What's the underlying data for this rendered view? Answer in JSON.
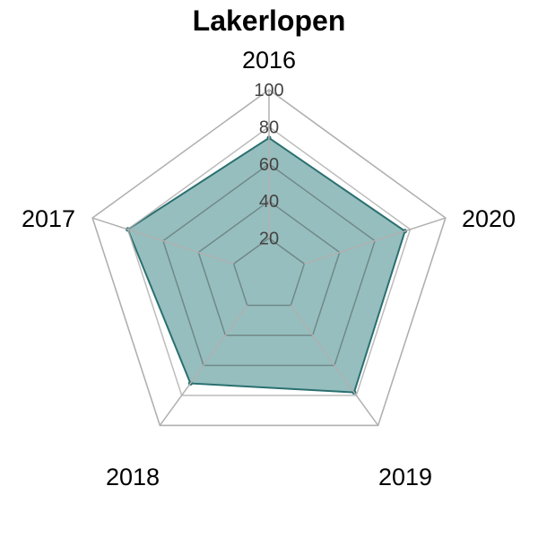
{
  "chart_data": {
    "type": "radar",
    "title": "Lakerlopen",
    "categories": [
      "2016",
      "2017",
      "2018",
      "2019",
      "2020"
    ],
    "series": [
      {
        "values": [
          74,
          80,
          72,
          78,
          77
        ]
      }
    ],
    "rlim": [
      0,
      100
    ],
    "ticks": [
      20,
      40,
      60,
      80,
      100
    ],
    "tick_labels": [
      "20",
      "40",
      "60",
      "80",
      "100"
    ],
    "grid": true,
    "legend": "none",
    "colors": {
      "fill": "#2e7d7d",
      "stroke": "#2a6f6f",
      "grid_inner": "#6b7f7f",
      "grid_outer": "#b0b0b0"
    }
  }
}
